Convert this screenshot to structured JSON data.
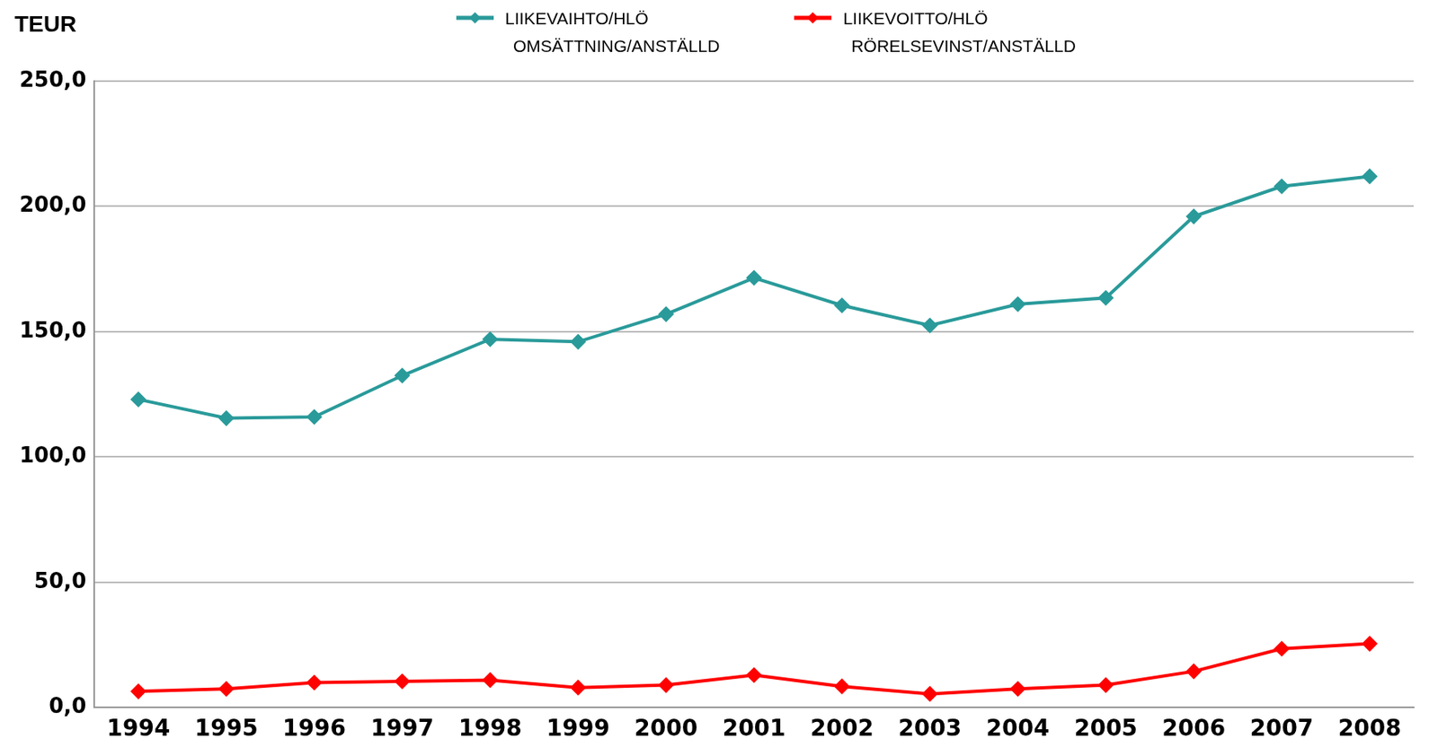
{
  "chart_data": {
    "type": "line",
    "y_label": "TEUR",
    "categories": [
      "1994",
      "1995",
      "1996",
      "1997",
      "1998",
      "1999",
      "2000",
      "2001",
      "2002",
      "2003",
      "2004",
      "2005",
      "2006",
      "2007",
      "2008"
    ],
    "series": [
      {
        "name": "LIIKEVAIHTO/HLÖ OMSÄTTNING/ANSTÄLLD",
        "color": "#2a9a9a",
        "marker": "diamond",
        "values": [
          123,
          115.5,
          116,
          132.5,
          147,
          146,
          157,
          171.5,
          160.5,
          152.5,
          161,
          163.5,
          196,
          208,
          212
        ]
      },
      {
        "name": "LIIKEVOITTO/HLÖ RÖRELSEVINST/ANSTÄLLD",
        "color": "#ff0000",
        "marker": "diamond",
        "values": [
          6.5,
          7.5,
          10,
          10.5,
          11,
          8,
          9,
          13,
          8.5,
          5.5,
          7.5,
          9,
          14.5,
          23.5,
          25.5
        ]
      }
    ],
    "ylim": [
      0,
      250
    ],
    "yticks": [
      {
        "value": 0,
        "label": "0,0"
      },
      {
        "value": 50,
        "label": "50,0"
      },
      {
        "value": 100,
        "label": "100,0"
      },
      {
        "value": 150,
        "label": "150,0"
      },
      {
        "value": 200,
        "label": "200,0"
      },
      {
        "value": 250,
        "label": "250,0"
      }
    ],
    "grid": true,
    "legend": "top"
  }
}
